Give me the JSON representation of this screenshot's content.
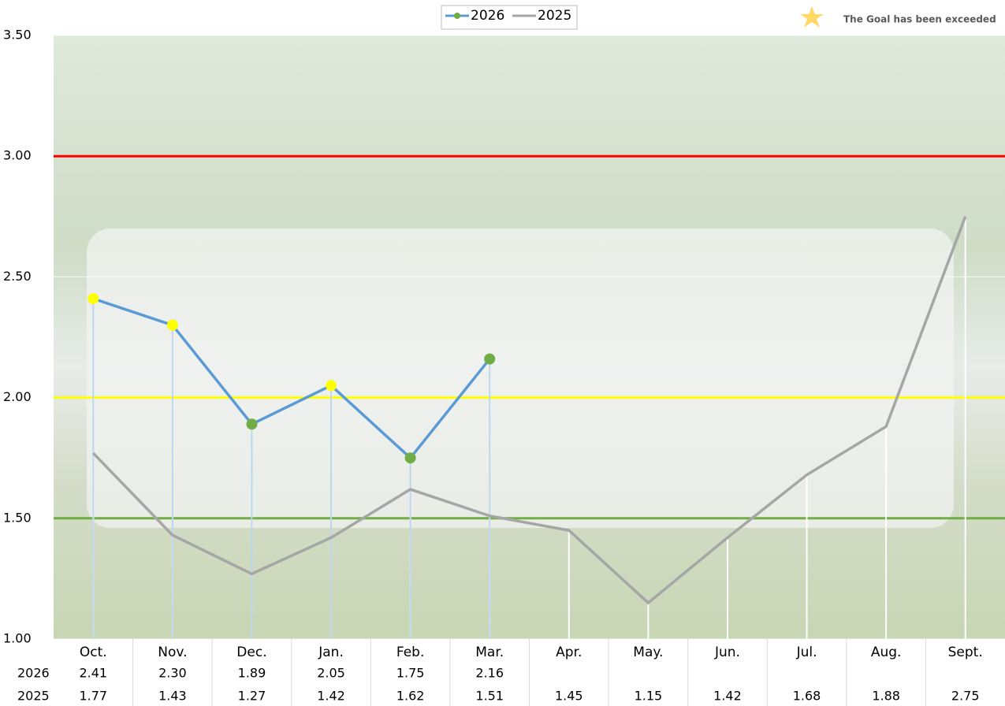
{
  "chart_data": {
    "type": "line",
    "categories": [
      "Oct.",
      "Nov.",
      "Dec.",
      "Jan.",
      "Feb.",
      "Mar.",
      "Apr.",
      "May.",
      "Jun.",
      "Jul.",
      "Aug.",
      "Sept."
    ],
    "series": [
      {
        "name": "2026",
        "color": "#5b9bd5",
        "drop_color": "#bdd7ee",
        "values": [
          2.41,
          2.3,
          1.89,
          2.05,
          1.75,
          2.16,
          null,
          null,
          null,
          null,
          null,
          null
        ],
        "value_labels": [
          "2.41",
          "2.30",
          "1.89",
          "2.05",
          "1.75",
          "2.16",
          null,
          null,
          null,
          null,
          null,
          null
        ],
        "marker_colors": [
          "#ffff00",
          "#ffff00",
          "#70ad47",
          "#ffff00",
          "#70ad47",
          "#70ad47",
          null,
          null,
          null,
          null,
          null,
          null
        ]
      },
      {
        "name": "2025",
        "color": "#a6a6a6",
        "drop_color": "#ffffff",
        "values": [
          1.77,
          1.43,
          1.27,
          1.42,
          1.62,
          1.51,
          1.45,
          1.15,
          1.42,
          1.68,
          1.88,
          2.75
        ],
        "value_labels": [
          "1.77",
          "1.43",
          "1.27",
          "1.42",
          "1.62",
          "1.51",
          "1.45",
          "1.15",
          "1.42",
          "1.68",
          "1.88",
          "2.75"
        ]
      }
    ],
    "ylim": [
      1.0,
      3.5
    ],
    "yticks": [
      {
        "value": 1.0,
        "label": "1.00"
      },
      {
        "value": 1.5,
        "label": "1.50"
      },
      {
        "value": 2.0,
        "label": "2.00"
      },
      {
        "value": 2.5,
        "label": "2.50"
      },
      {
        "value": 3.0,
        "label": "3.00"
      },
      {
        "value": 3.5,
        "label": "3.50"
      }
    ],
    "reference_lines": [
      {
        "value": 3.0,
        "color": "#ff0000"
      },
      {
        "value": 2.0,
        "color": "#ffff00"
      },
      {
        "value": 1.5,
        "color": "#70ad47"
      }
    ],
    "legend": "top",
    "annotation": "The Goal has been exceeded",
    "annotation_color": "#ffd966"
  }
}
